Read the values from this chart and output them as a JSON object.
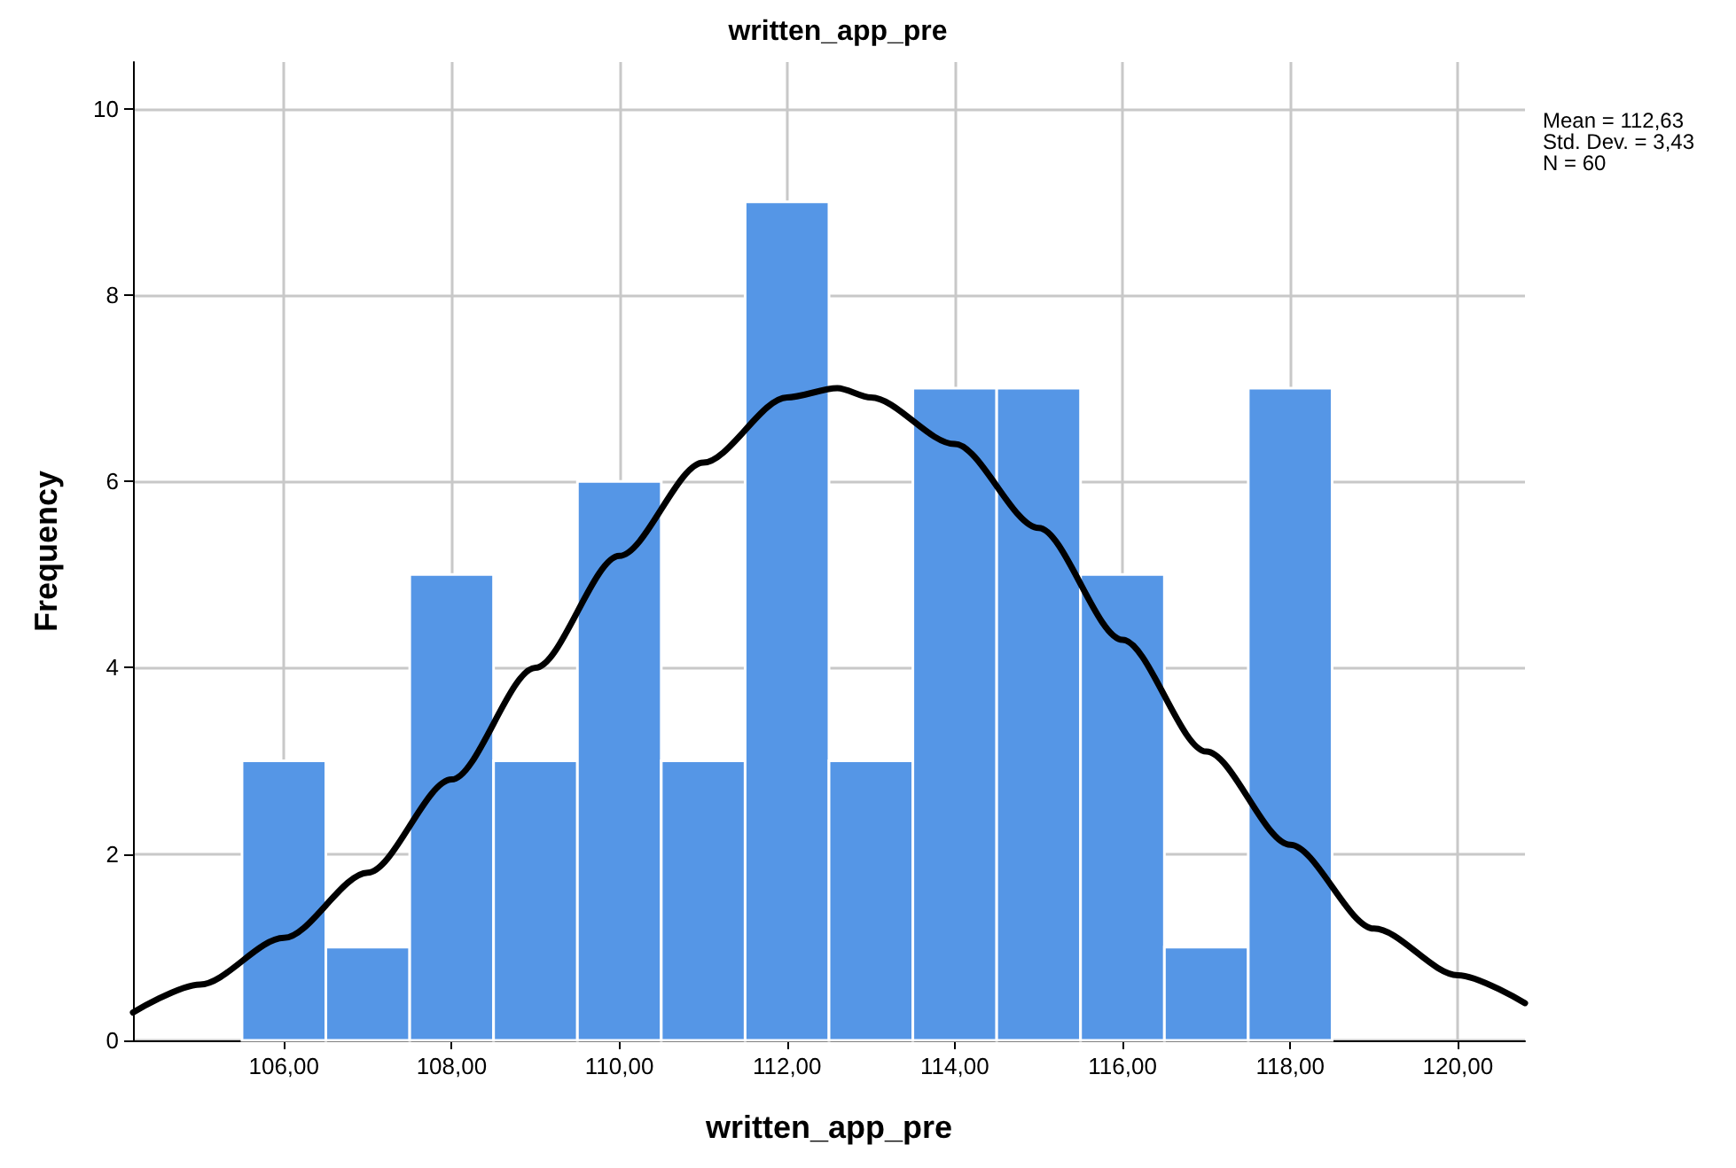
{
  "chart_data": {
    "type": "histogram",
    "title": "written_app_pre",
    "xlabel": "written_app_pre",
    "ylabel": "Frequency",
    "bins": [
      105.5,
      106.5,
      107.5,
      108.5,
      109.5,
      110.5,
      111.5,
      112.5,
      113.5,
      114.5,
      115.5,
      116.5,
      117.5,
      118.5
    ],
    "values": [
      3,
      1,
      5,
      3,
      6,
      3,
      9,
      3,
      7,
      7,
      5,
      1,
      7
    ],
    "color": "#5596e6",
    "series": [
      {
        "type": "line",
        "color": "#000000",
        "marker": "none",
        "line_style": "solid",
        "x": [
          104.2,
          105,
          106,
          107,
          108,
          109,
          110,
          111,
          112,
          112.6,
          113,
          114,
          115,
          116,
          117,
          118,
          119,
          120,
          120.8
        ],
        "values": [
          0.3,
          0.6,
          1.1,
          1.8,
          2.8,
          4.0,
          5.2,
          6.2,
          6.9,
          7.0,
          6.9,
          6.4,
          5.5,
          4.3,
          3.1,
          2.1,
          1.2,
          0.7,
          0.4
        ]
      }
    ],
    "xlim": [
      104.2,
      120.8
    ],
    "xticks": [
      {
        "value": 106,
        "label": "106,00"
      },
      {
        "value": 108,
        "label": "108,00"
      },
      {
        "value": 110,
        "label": "110,00"
      },
      {
        "value": 112,
        "label": "112,00"
      },
      {
        "value": 114,
        "label": "114,00"
      },
      {
        "value": 116,
        "label": "116,00"
      },
      {
        "value": 118,
        "label": "118,00"
      },
      {
        "value": 120,
        "label": "120,00"
      }
    ],
    "ylim": [
      0,
      10.5
    ],
    "yticks": [
      0,
      2,
      4,
      6,
      8,
      10
    ],
    "grid": true,
    "annotations": [
      "Mean = 112,63",
      "Std. Dev. = 3,43",
      "N = 60"
    ]
  }
}
